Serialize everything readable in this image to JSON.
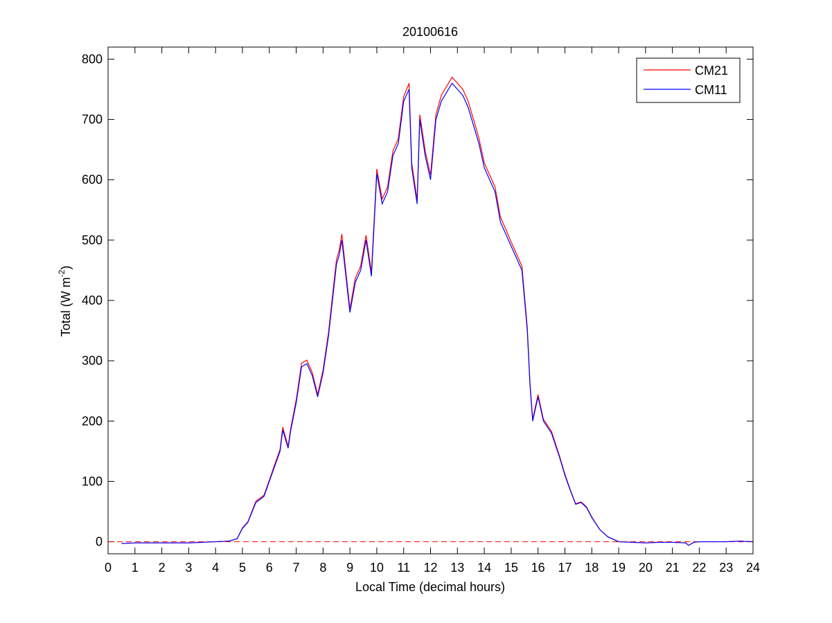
{
  "chart_data": {
    "type": "line",
    "title": "20100616",
    "xlabel": "Local Time (decimal hours)",
    "ylabel": [
      "Total (W m",
      "-2",
      ")"
    ],
    "x": [
      0.5,
      1,
      1.5,
      2,
      2.5,
      3,
      3.5,
      4,
      4.5,
      4.8,
      5,
      5.2,
      5.5,
      5.8,
      6,
      6.2,
      6.4,
      6.5,
      6.7,
      6.8,
      7,
      7.2,
      7.4,
      7.6,
      7.8,
      8,
      8.2,
      8.4,
      8.5,
      8.6,
      8.7,
      8.8,
      9,
      9.2,
      9.4,
      9.6,
      9.8,
      10,
      10.2,
      10.4,
      10.6,
      10.8,
      11,
      11.2,
      11.3,
      11.5,
      11.6,
      11.8,
      12,
      12.2,
      12.4,
      12.6,
      12.8,
      13,
      13.2,
      13.4,
      13.6,
      13.8,
      14,
      14.2,
      14.4,
      14.6,
      14.8,
      15,
      15.2,
      15.4,
      15.6,
      15.7,
      15.8,
      16,
      16.2,
      16.5,
      16.8,
      17,
      17.2,
      17.4,
      17.6,
      17.8,
      18,
      18.3,
      18.6,
      19,
      19.5,
      20,
      20.5,
      21,
      21.5,
      21.6,
      21.8,
      22,
      23,
      23.5,
      24
    ],
    "series": [
      {
        "name": "CM21",
        "color": "#ff0000",
        "values": [
          -3,
          -2,
          -2,
          -2,
          -2,
          -2,
          -1,
          0,
          1,
          5,
          23,
          33,
          67,
          77,
          102,
          128,
          153,
          190,
          158,
          189,
          235,
          296,
          301,
          280,
          244,
          285,
          346,
          428,
          468,
          483,
          510,
          468,
          386,
          437,
          457,
          508,
          447,
          618,
          568,
          588,
          648,
          668,
          738,
          760,
          628,
          567,
          708,
          648,
          608,
          708,
          740,
          755,
          770,
          760,
          750,
          730,
          700,
          669,
          628,
          608,
          588,
          538,
          518,
          497,
          477,
          457,
          355,
          264,
          203,
          244,
          203,
          183,
          142,
          112,
          86,
          63,
          66,
          58,
          41,
          20,
          8,
          0,
          -1,
          -2,
          -1,
          -1,
          -2,
          -6,
          -1,
          0,
          0,
          1,
          0
        ]
      },
      {
        "name": "CM11",
        "color": "#0000ff",
        "values": [
          -3,
          -2,
          -2,
          -2,
          -2,
          -2,
          -1,
          0,
          1,
          5,
          22,
          32,
          65,
          75,
          100,
          125,
          150,
          185,
          155,
          185,
          230,
          290,
          295,
          275,
          240,
          280,
          340,
          420,
          460,
          475,
          500,
          460,
          380,
          430,
          450,
          500,
          440,
          610,
          560,
          580,
          640,
          660,
          730,
          750,
          620,
          560,
          700,
          640,
          600,
          700,
          730,
          745,
          760,
          750,
          740,
          720,
          690,
          660,
          620,
          600,
          580,
          530,
          510,
          490,
          470,
          450,
          350,
          260,
          200,
          240,
          200,
          180,
          140,
          110,
          85,
          62,
          65,
          57,
          40,
          20,
          8,
          0,
          -1,
          -2,
          -1,
          -1,
          -2,
          -6,
          -1,
          0,
          0,
          1,
          0
        ]
      }
    ],
    "reference_line": {
      "value": 0,
      "color": "#ff0000",
      "style": "dashed"
    },
    "xlim": [
      0,
      24
    ],
    "xticks": [
      0,
      1,
      2,
      3,
      4,
      5,
      6,
      7,
      8,
      9,
      10,
      11,
      12,
      13,
      14,
      15,
      16,
      17,
      18,
      19,
      20,
      21,
      22,
      23,
      24
    ],
    "ylim": [
      -20,
      820
    ],
    "yticks": [
      0,
      100,
      200,
      300,
      400,
      500,
      600,
      700,
      800
    ],
    "legend": "upper right",
    "grid": false
  }
}
